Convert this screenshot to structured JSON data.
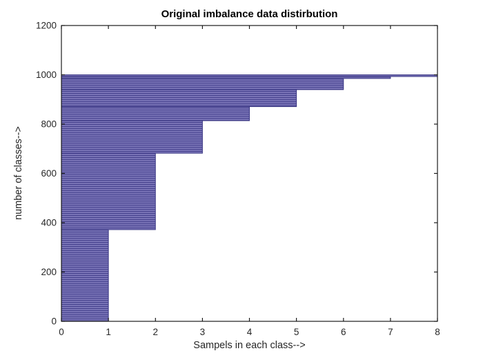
{
  "figure": {
    "background": "#ffffff"
  },
  "chart_data": {
    "type": "bar",
    "orientation": "horizontal",
    "description": "Horizontal bar staircase of 1000 classes sorted ascending by sample count; y = class rank (number of classes), x = samples in each class.",
    "title": "Original imbalance data distirbution",
    "xlabel": "Sampels in each class-->",
    "ylabel": "number of classes-->",
    "xlim": [
      0,
      8
    ],
    "ylim": [
      0,
      1200
    ],
    "x_ticks": [
      0,
      1,
      2,
      3,
      4,
      5,
      6,
      7,
      8
    ],
    "y_ticks": [
      0,
      200,
      400,
      600,
      800,
      1000,
      1200
    ],
    "total_classes": 1000,
    "samples_per_class": [
      1,
      2,
      3,
      4,
      5,
      6,
      7,
      8
    ],
    "num_classes_with_samples": [
      372,
      310,
      132,
      57,
      69,
      45,
      8,
      7
    ],
    "cumulative_classes": [
      372,
      682,
      814,
      871,
      940,
      985,
      993,
      1000
    ],
    "grid": false,
    "legend": null,
    "colors": {
      "bar_fill_light": "#7b76b8",
      "bar_stripe_dark": "#45418d",
      "bar_edge": "#3a3784",
      "axis": "#1a1a1a",
      "tick_text": "#262626",
      "title_text": "#000000",
      "background": "#ffffff"
    }
  }
}
